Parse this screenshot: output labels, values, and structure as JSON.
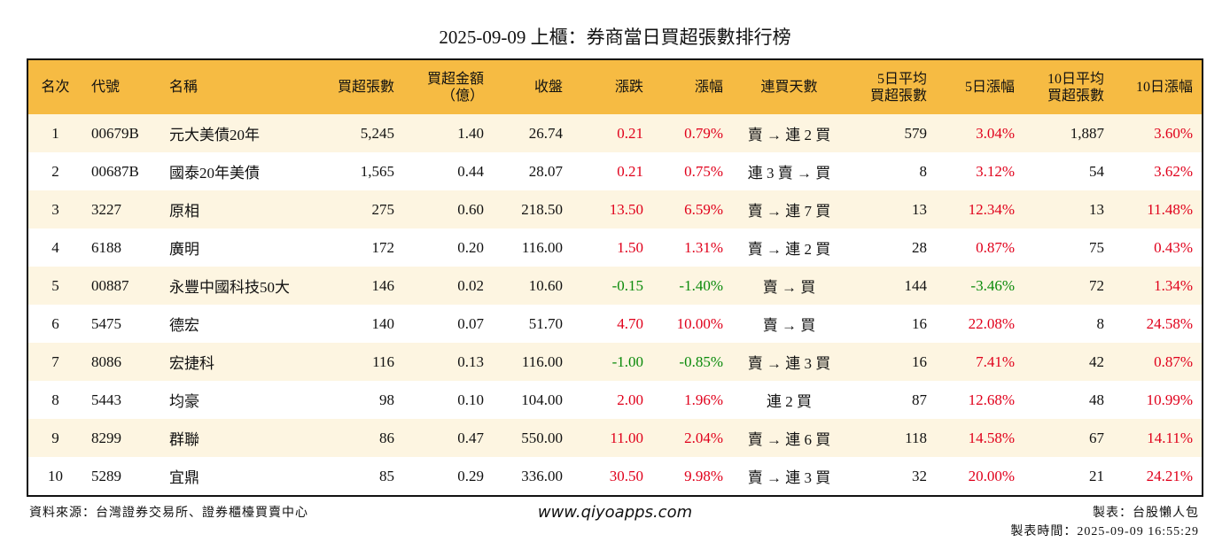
{
  "header": {
    "title": "2025-09-09 上櫃：券商當日買超張數排行榜"
  },
  "table": {
    "header": [
      "名次",
      "代號",
      "名稱",
      "買超張數",
      "買超金額\n（億）",
      "收盤",
      "漲跌",
      "漲幅",
      "連買天數",
      "5日平均\n買超張數",
      "5日漲幅",
      "10日平均\n買超張數",
      "10日漲幅"
    ],
    "rows": [
      [
        "1",
        "00679B",
        "元大美債20年",
        "5,245",
        "1.40",
        "26.74",
        "0.21",
        "0.79%",
        "賣 → 連 2 買",
        "579",
        "3.04%",
        "1,887",
        "3.60%"
      ],
      [
        "2",
        "00687B",
        "國泰20年美債",
        "1,565",
        "0.44",
        "28.07",
        "0.21",
        "0.75%",
        "連 3 賣 → 買",
        "8",
        "3.12%",
        "54",
        "3.62%"
      ],
      [
        "3",
        "3227",
        "原相",
        "275",
        "0.60",
        "218.50",
        "13.50",
        "6.59%",
        "賣 → 連 7 買",
        "13",
        "12.34%",
        "13",
        "11.48%"
      ],
      [
        "4",
        "6188",
        "廣明",
        "172",
        "0.20",
        "116.00",
        "1.50",
        "1.31%",
        "賣 → 連 2 買",
        "28",
        "0.87%",
        "75",
        "0.43%"
      ],
      [
        "5",
        "00887",
        "永豐中國科技50大",
        "146",
        "0.02",
        "10.60",
        "-0.15",
        "-1.40%",
        "賣 → 買",
        "144",
        "-3.46%",
        "72",
        "1.34%"
      ],
      [
        "6",
        "5475",
        "德宏",
        "140",
        "0.07",
        "51.70",
        "4.70",
        "10.00%",
        "賣 → 買",
        "16",
        "22.08%",
        "8",
        "24.58%"
      ],
      [
        "7",
        "8086",
        "宏捷科",
        "116",
        "0.13",
        "116.00",
        "-1.00",
        "-0.85%",
        "賣 → 連 3 買",
        "16",
        "7.41%",
        "42",
        "0.87%"
      ],
      [
        "8",
        "5443",
        "均豪",
        "98",
        "0.10",
        "104.00",
        "2.00",
        "1.96%",
        "連 2 買",
        "87",
        "12.68%",
        "48",
        "10.99%"
      ],
      [
        "9",
        "8299",
        "群聯",
        "86",
        "0.47",
        "550.00",
        "11.00",
        "2.04%",
        "賣 → 連 6 買",
        "118",
        "14.58%",
        "67",
        "14.11%"
      ],
      [
        "10",
        "5289",
        "宜鼎",
        "85",
        "0.29",
        "336.00",
        "30.50",
        "9.98%",
        "賣 → 連 3 買",
        "32",
        "20.00%",
        "21",
        "24.21%"
      ]
    ]
  },
  "footer": {
    "source": "資料來源：台灣證券交易所、證券櫃檯買賣中心",
    "site": "www.qiyoapps.com",
    "maker": "製表：台股懶人包",
    "time": "製表時間：2025-09-09 16:55:29"
  }
}
